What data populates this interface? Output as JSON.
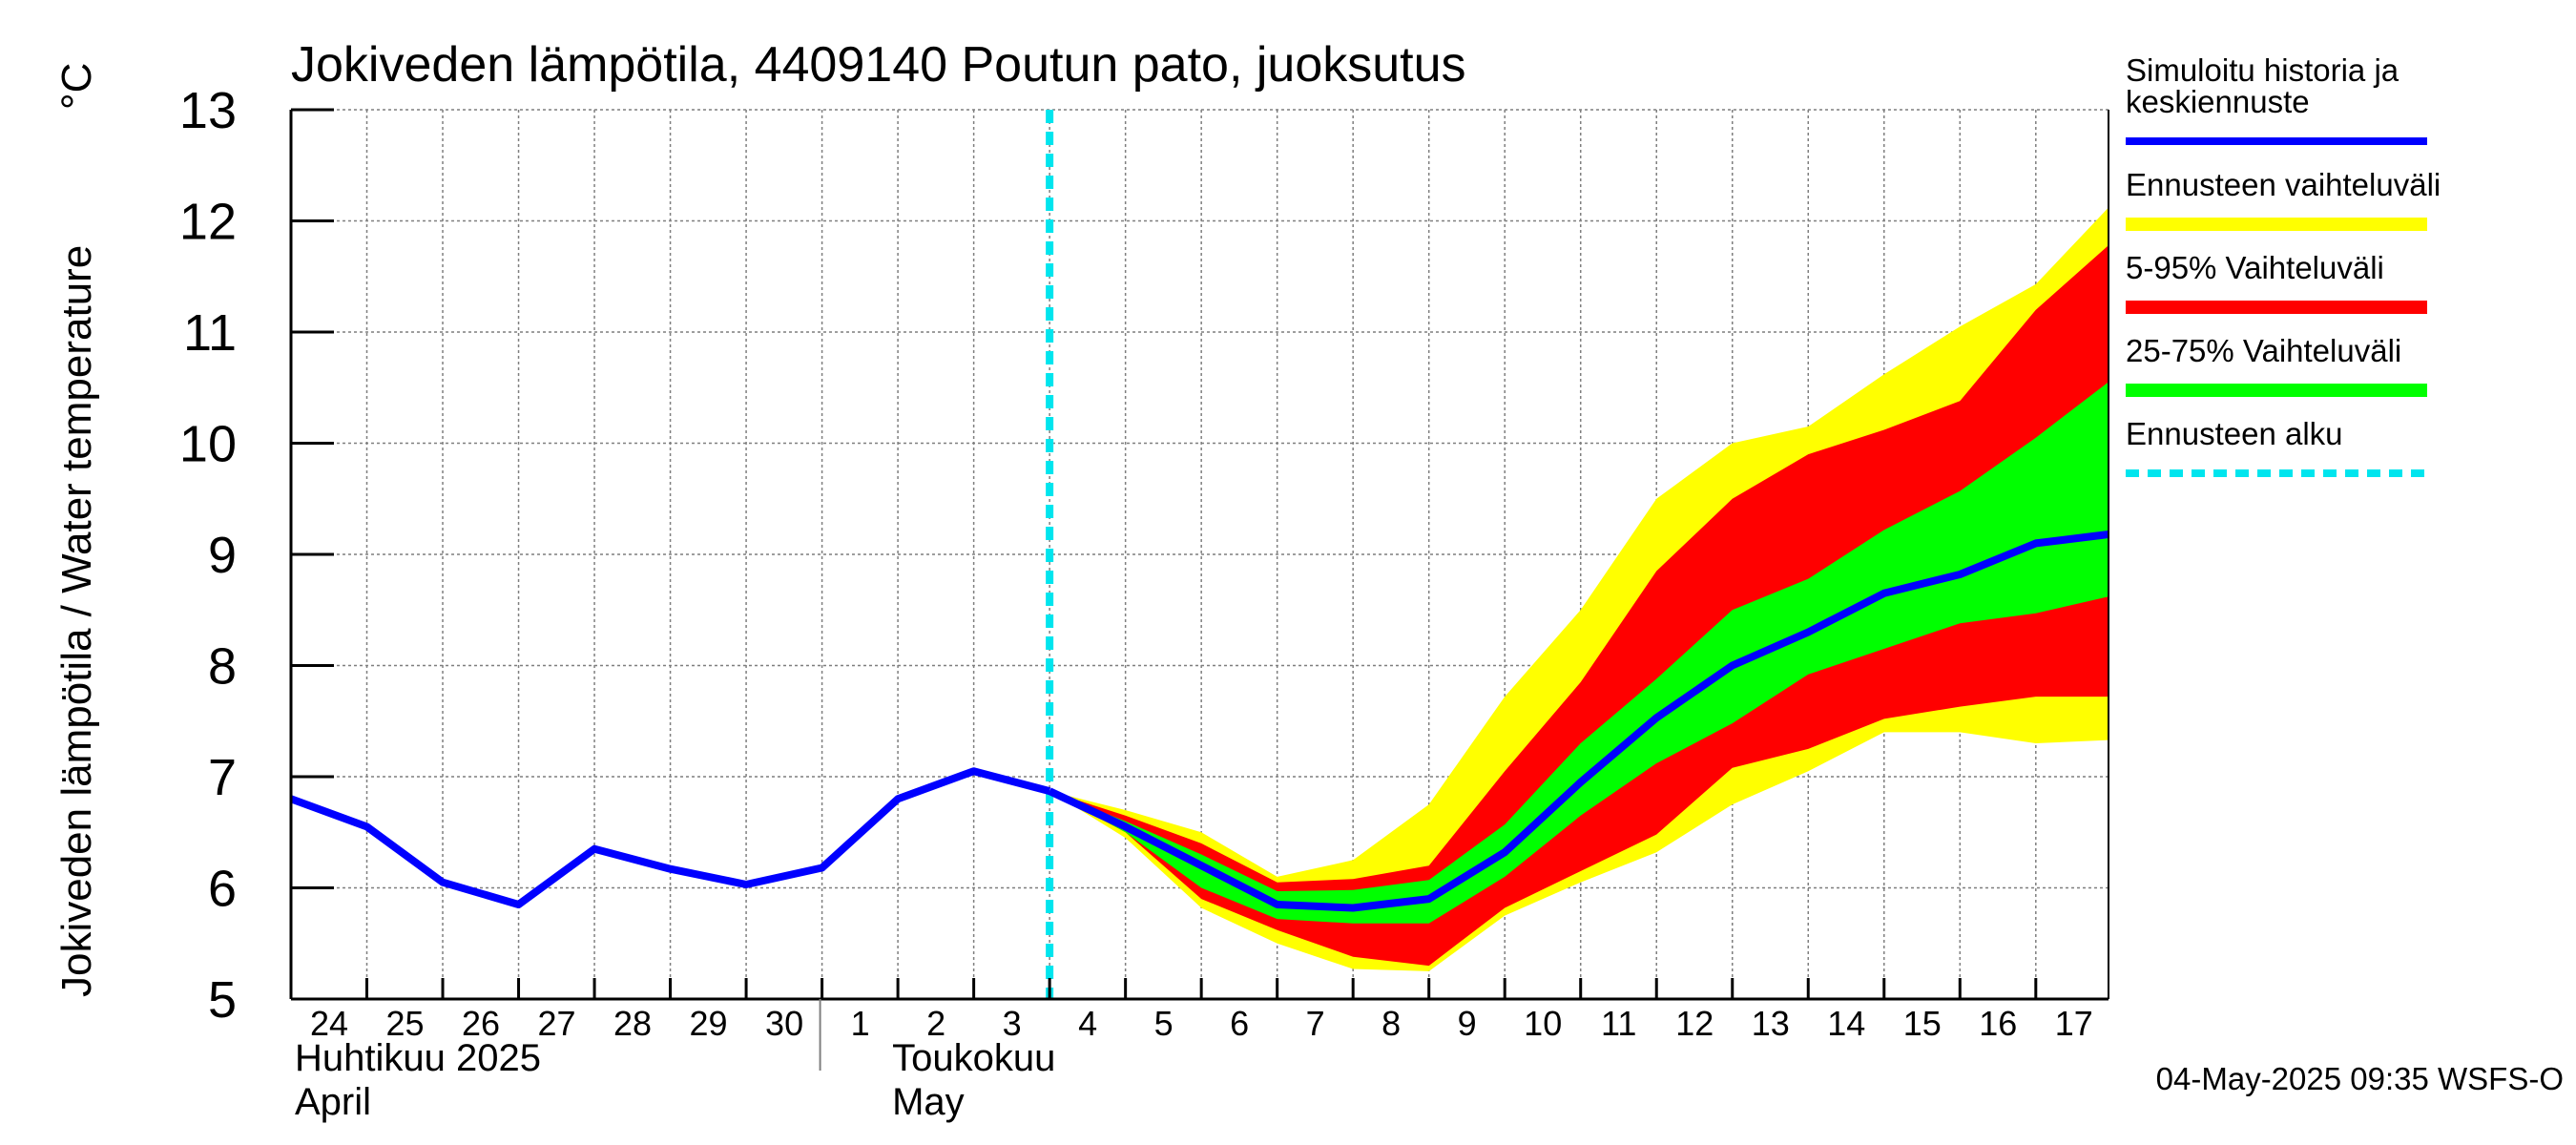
{
  "chart_data": {
    "type": "area",
    "title": "Jokiveden lämpötila, 4409140 Poutun pato, juoksutus",
    "ylabel": "Jokiveden lämpötila / Water temperature",
    "yunit": "°C",
    "ylim": [
      5,
      13
    ],
    "yticks": [
      5,
      6,
      7,
      8,
      9,
      10,
      11,
      12,
      13
    ],
    "xlim": [
      "2025-04-24",
      "2025-05-17T23:00"
    ],
    "grid": true,
    "legend_placement": "right",
    "day_ticks": [
      {
        "date": "2025-04-24",
        "label": "24"
      },
      {
        "date": "2025-04-25",
        "label": "25"
      },
      {
        "date": "2025-04-26",
        "label": "26"
      },
      {
        "date": "2025-04-27",
        "label": "27"
      },
      {
        "date": "2025-04-28",
        "label": "28"
      },
      {
        "date": "2025-04-29",
        "label": "29"
      },
      {
        "date": "2025-04-30",
        "label": "30"
      },
      {
        "date": "2025-05-01",
        "label": "1"
      },
      {
        "date": "2025-05-02",
        "label": "2"
      },
      {
        "date": "2025-05-03",
        "label": "3"
      },
      {
        "date": "2025-05-04",
        "label": "4"
      },
      {
        "date": "2025-05-05",
        "label": "5"
      },
      {
        "date": "2025-05-06",
        "label": "6"
      },
      {
        "date": "2025-05-07",
        "label": "7"
      },
      {
        "date": "2025-05-08",
        "label": "8"
      },
      {
        "date": "2025-05-09",
        "label": "9"
      },
      {
        "date": "2025-05-10",
        "label": "10"
      },
      {
        "date": "2025-05-11",
        "label": "11"
      },
      {
        "date": "2025-05-12",
        "label": "12"
      },
      {
        "date": "2025-05-13",
        "label": "13"
      },
      {
        "date": "2025-05-14",
        "label": "14"
      },
      {
        "date": "2025-05-15",
        "label": "15"
      },
      {
        "date": "2025-05-16",
        "label": "16"
      },
      {
        "date": "2025-05-17",
        "label": "17"
      }
    ],
    "months": [
      {
        "date": "2025-04-24",
        "fi": "Huhtikuu  2025",
        "en": "April"
      },
      {
        "date": "2025-05-01",
        "fi": "Toukokuu",
        "en": "May"
      }
    ],
    "forecast_start": "2025-05-04",
    "history": {
      "x": [
        "2025-04-24",
        "2025-04-25",
        "2025-04-26",
        "2025-04-27",
        "2025-04-28",
        "2025-04-29",
        "2025-04-30",
        "2025-05-01",
        "2025-05-02",
        "2025-05-03",
        "2025-05-04"
      ],
      "y": [
        6.8,
        6.55,
        6.05,
        5.85,
        6.35,
        6.17,
        6.03,
        6.18,
        6.8,
        7.05,
        6.87
      ]
    },
    "forecast": {
      "x": [
        "2025-05-04",
        "2025-05-05",
        "2025-05-06",
        "2025-05-07",
        "2025-05-08",
        "2025-05-09",
        "2025-05-10",
        "2025-05-11",
        "2025-05-12",
        "2025-05-13",
        "2025-05-14",
        "2025-05-15",
        "2025-05-16",
        "2025-05-17",
        "2025-05-17T23:00"
      ],
      "median": [
        6.87,
        6.55,
        6.2,
        5.85,
        5.82,
        5.9,
        6.32,
        6.95,
        7.53,
        8.0,
        8.3,
        8.65,
        8.82,
        9.1,
        9.18
      ],
      "min": [
        6.87,
        6.45,
        5.82,
        5.5,
        5.27,
        5.25,
        5.75,
        6.05,
        6.32,
        6.75,
        7.05,
        7.4,
        7.4,
        7.3,
        7.33
      ],
      "max": [
        6.87,
        6.7,
        6.5,
        6.1,
        6.25,
        6.75,
        7.72,
        8.5,
        9.5,
        10.0,
        10.15,
        10.62,
        11.05,
        11.43,
        12.12
      ],
      "p5": [
        6.87,
        6.5,
        5.9,
        5.62,
        5.38,
        5.3,
        5.82,
        6.15,
        6.48,
        7.08,
        7.25,
        7.52,
        7.63,
        7.72,
        7.72
      ],
      "p95": [
        6.87,
        6.65,
        6.4,
        6.05,
        6.08,
        6.2,
        7.05,
        7.85,
        8.85,
        9.5,
        9.9,
        10.12,
        10.38,
        11.2,
        11.78
      ],
      "p25": [
        6.87,
        6.5,
        6.0,
        5.72,
        5.68,
        5.68,
        6.1,
        6.65,
        7.12,
        7.48,
        7.92,
        8.15,
        8.38,
        8.47,
        8.62
      ],
      "p75": [
        6.87,
        6.6,
        6.3,
        5.97,
        5.98,
        6.07,
        6.57,
        7.3,
        7.88,
        8.5,
        8.78,
        9.22,
        9.57,
        10.05,
        10.55
      ]
    },
    "legend": [
      {
        "label": "Simuloitu historia ja\nkeskiennuste",
        "color": "#0000ff",
        "style": "line"
      },
      {
        "label": "Ennusteen vaihteluväli",
        "color": "#ffff00",
        "style": "band"
      },
      {
        "label": "5-95% Vaihteluväli",
        "color": "#ff0000",
        "style": "band"
      },
      {
        "label": "25-75% Vaihteluväli",
        "color": "#00ff00",
        "style": "band"
      },
      {
        "label": "Ennusteen alku",
        "color": "#00e5ee",
        "style": "dashed"
      }
    ],
    "colors": {
      "history_line": "#0000ff",
      "envelope": "#ffff00",
      "band_5_95": "#ff0000",
      "band_25_75": "#00ff00",
      "forecast_start": "#00e5ee",
      "grid": "#7f7f7f"
    }
  },
  "footer": "04-May-2025 09:35 WSFS-O"
}
